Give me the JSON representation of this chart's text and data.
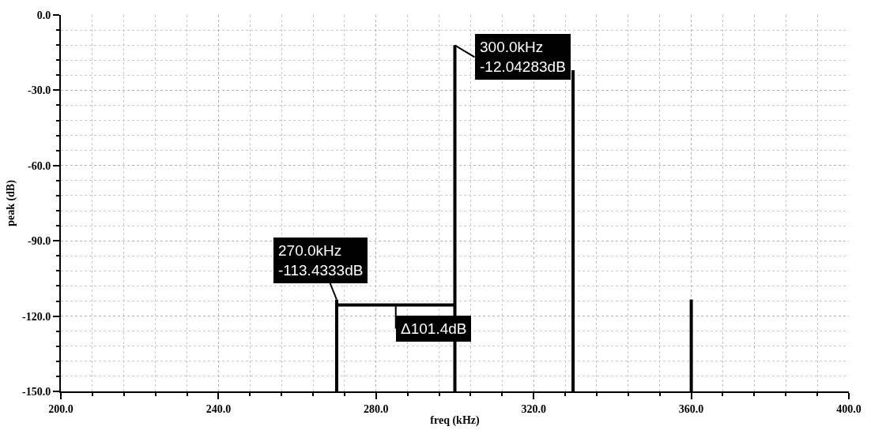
{
  "chart_data": {
    "type": "line",
    "xlabel": "freq (kHz)",
    "ylabel": "peak (dB)",
    "xlim": [
      200,
      400
    ],
    "xticks": [
      {
        "value": 200,
        "label": "200.0"
      },
      {
        "value": 240,
        "label": "240.0"
      },
      {
        "value": 280,
        "label": "280.0"
      },
      {
        "value": 320,
        "label": "320.0"
      },
      {
        "value": 360,
        "label": "360.0"
      },
      {
        "value": 400,
        "label": "400.0"
      }
    ],
    "ylim": [
      -150,
      0
    ],
    "yticks": [
      {
        "value": -150,
        "label": "-150.0"
      },
      {
        "value": -120,
        "label": "-120.0"
      },
      {
        "value": -90,
        "label": "-90.0"
      },
      {
        "value": -60,
        "label": "-60.0"
      },
      {
        "value": -30,
        "label": "-30.0"
      },
      {
        "value": 0,
        "label": "0.0"
      }
    ],
    "grid": true,
    "series": [
      {
        "color": "#000000",
        "x": [
          270,
          270
        ],
        "values": [
          -150,
          -113.4333
        ]
      },
      {
        "color": "#000000",
        "x": [
          300,
          300
        ],
        "values": [
          -150,
          -12.04283
        ]
      },
      {
        "color": "#000000",
        "x": [
          330,
          330
        ],
        "values": [
          -150,
          -22
        ]
      },
      {
        "color": "#000000",
        "x": [
          360,
          360
        ],
        "values": [
          -150,
          -113.4
        ]
      },
      {
        "color": "#000000",
        "x": [
          270,
          300
        ],
        "values": [
          -115.6,
          -115.6
        ]
      }
    ],
    "annotations": [
      {
        "text": "270.0kHz\n-113.4333dB",
        "x": 270,
        "y": -113.4333
      },
      {
        "text": "300.0kHz\n-12.04283dB",
        "x": 300,
        "y": -12.04283
      },
      {
        "text": "Δ101.4dB",
        "x": 285,
        "y": -115.6
      }
    ]
  }
}
